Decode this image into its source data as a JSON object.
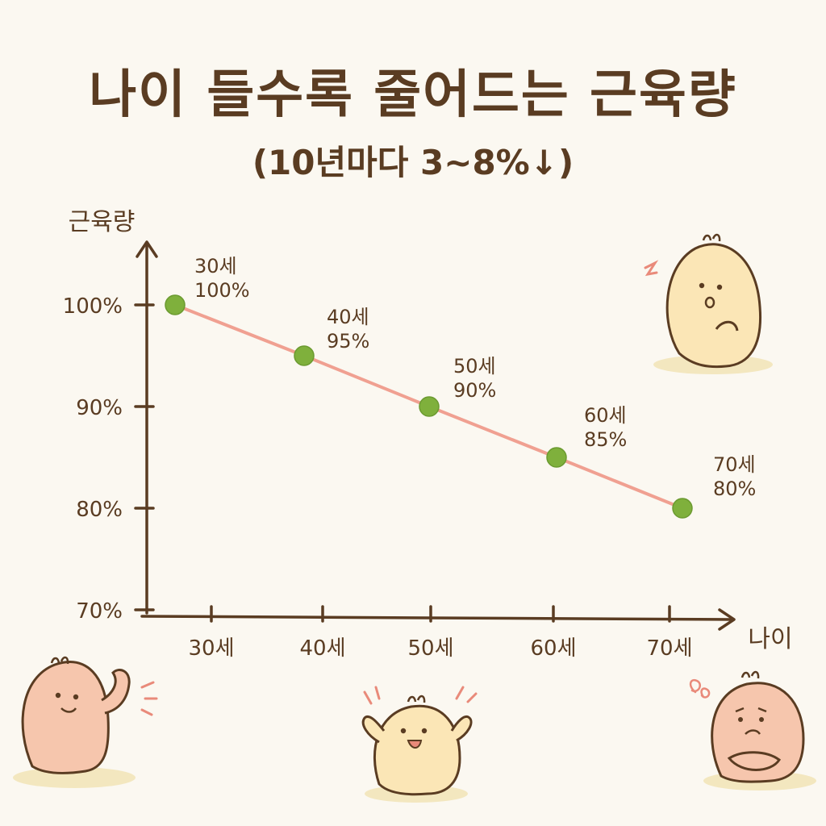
{
  "title": "나이 들수록 줄어드는 근육량",
  "subtitle": "(10년마다 3~8%↓)",
  "chart_data": {
    "type": "line",
    "ylabel": "근육량",
    "xlabel": "나이",
    "categories": [
      "30세",
      "40세",
      "50세",
      "60세",
      "70세"
    ],
    "series": [
      {
        "values": [
          100,
          95,
          90,
          85,
          80
        ]
      }
    ],
    "point_labels": [
      {
        "age": "30세",
        "value": "100%"
      },
      {
        "age": "40세",
        "value": "95%"
      },
      {
        "age": "50세",
        "value": "90%"
      },
      {
        "age": "60세",
        "value": "85%"
      },
      {
        "age": "70세",
        "value": "80%"
      }
    ],
    "yticks": [
      {
        "value": 100,
        "label": "100%"
      },
      {
        "value": 90,
        "label": "90%"
      },
      {
        "value": 80,
        "label": "80%"
      },
      {
        "value": 70,
        "label": "70%"
      }
    ],
    "ylim": [
      70,
      100
    ],
    "grid": false,
    "colors": {
      "line": "#f0a091",
      "marker": "#7fb03c",
      "axis": "#5a3c22"
    }
  }
}
